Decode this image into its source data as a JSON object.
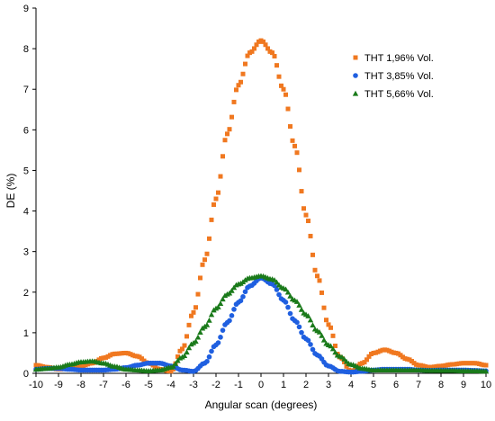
{
  "chart_data": {
    "type": "scatter",
    "xlabel": "Angular scan (degrees)",
    "ylabel": "DE (%)",
    "xlim": [
      -10,
      10
    ],
    "ylim": [
      0,
      9
    ],
    "x_ticks": [
      -10,
      -9,
      -8,
      -7,
      -6,
      -5,
      -4,
      -3,
      -2,
      -1,
      0,
      1,
      2,
      3,
      4,
      5,
      6,
      7,
      8,
      9,
      10
    ],
    "y_ticks": [
      0,
      1,
      2,
      3,
      4,
      5,
      6,
      7,
      8,
      9
    ],
    "x_tick_labels": [
      "-10",
      "-9",
      "-8",
      "-7",
      "-6",
      "-5",
      "-4",
      "-3",
      "-2",
      "-1",
      "0",
      "1",
      "2",
      "3",
      "4",
      "5",
      "6",
      "7",
      "8",
      "9",
      "10"
    ],
    "y_tick_labels": [
      "0",
      "1",
      "2",
      "3",
      "4",
      "5",
      "6",
      "7",
      "8",
      "9"
    ],
    "grid": false,
    "legend_position": "top-right",
    "series": [
      {
        "name": "THT 1,96% Vol.",
        "color": "#f07820",
        "marker": "square",
        "x": [
          -10,
          -9.5,
          -9,
          -8.5,
          -8,
          -7.5,
          -7,
          -6.5,
          -6,
          -5.5,
          -5,
          -4.5,
          -4,
          -3.5,
          -3,
          -2.5,
          -2,
          -1.5,
          -1,
          -0.5,
          0,
          0.5,
          1,
          1.5,
          2,
          2.5,
          3,
          3.5,
          4,
          4.5,
          5,
          5.5,
          6,
          6.5,
          7,
          7.5,
          8,
          8.5,
          9,
          9.5,
          10
        ],
        "y": [
          0.2,
          0.15,
          0.1,
          0.12,
          0.18,
          0.25,
          0.38,
          0.48,
          0.5,
          0.42,
          0.25,
          0.1,
          0.05,
          0.6,
          1.5,
          2.8,
          4.3,
          5.9,
          7.1,
          7.9,
          8.2,
          7.9,
          7.0,
          5.6,
          3.9,
          2.4,
          1.2,
          0.4,
          0.05,
          0.25,
          0.5,
          0.58,
          0.5,
          0.35,
          0.2,
          0.15,
          0.18,
          0.22,
          0.25,
          0.25,
          0.2
        ]
      },
      {
        "name": "THT 3,85% Vol.",
        "color": "#1f5fe0",
        "marker": "circle",
        "x": [
          -10,
          -9.5,
          -9,
          -8.5,
          -8,
          -7.5,
          -7,
          -6.5,
          -6,
          -5.5,
          -5,
          -4.5,
          -4,
          -3.5,
          -3,
          -2.5,
          -2,
          -1.5,
          -1,
          -0.5,
          0,
          0.5,
          1,
          1.5,
          2,
          2.5,
          3,
          3.5,
          4,
          4.5,
          5,
          5.5,
          6,
          6.5,
          7,
          7.5,
          8,
          8.5,
          9,
          9.5,
          10
        ],
        "y": [
          0.1,
          0.12,
          0.12,
          0.1,
          0.08,
          0.08,
          0.08,
          0.1,
          0.14,
          0.2,
          0.25,
          0.25,
          0.18,
          0.08,
          0.05,
          0.25,
          0.7,
          1.25,
          1.75,
          2.15,
          2.35,
          2.2,
          1.8,
          1.3,
          0.85,
          0.45,
          0.18,
          0.05,
          0.03,
          0.05,
          0.08,
          0.1,
          0.1,
          0.1,
          0.08,
          0.07,
          0.08,
          0.08,
          0.08,
          0.07,
          0.06
        ]
      },
      {
        "name": "THT 5,66% Vol.",
        "color": "#1a7a1a",
        "marker": "triangle",
        "x": [
          -10,
          -9.5,
          -9,
          -8.5,
          -8,
          -7.5,
          -7,
          -6.5,
          -6,
          -5.5,
          -5,
          -4.5,
          -4,
          -3.5,
          -3,
          -2.5,
          -2,
          -1.5,
          -1,
          -0.5,
          0,
          0.5,
          1,
          1.5,
          2,
          2.5,
          3,
          3.5,
          4,
          4.5,
          5,
          5.5,
          6,
          6.5,
          7,
          7.5,
          8,
          8.5,
          9,
          9.5,
          10
        ],
        "y": [
          0.1,
          0.12,
          0.15,
          0.22,
          0.28,
          0.3,
          0.25,
          0.17,
          0.1,
          0.08,
          0.06,
          0.08,
          0.15,
          0.4,
          0.75,
          1.15,
          1.6,
          1.95,
          2.2,
          2.35,
          2.4,
          2.32,
          2.1,
          1.8,
          1.45,
          1.05,
          0.7,
          0.42,
          0.22,
          0.12,
          0.08,
          0.08,
          0.08,
          0.08,
          0.08,
          0.07,
          0.07,
          0.07,
          0.06,
          0.06,
          0.05
        ]
      }
    ]
  }
}
